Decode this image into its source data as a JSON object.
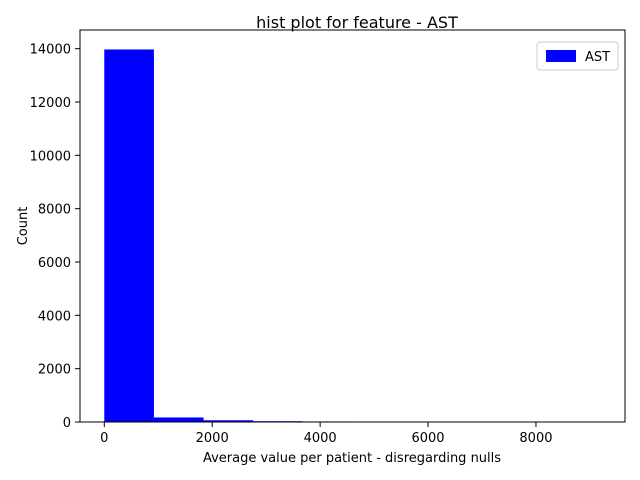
{
  "chart_data": {
    "type": "bar",
    "title": "hist plot for feature -  AST",
    "xlabel": "Average value per patient - disregarding nulls",
    "ylabel": "Count",
    "xlim": [
      -450,
      9650
    ],
    "ylim": [
      0,
      14700
    ],
    "xticks": [
      0,
      2000,
      4000,
      6000,
      8000
    ],
    "yticks": [
      0,
      2000,
      4000,
      6000,
      8000,
      10000,
      12000,
      14000
    ],
    "bin_edges": [
      0,
      920,
      1840,
      2760,
      3680,
      4600,
      5520,
      6440,
      7360,
      8280,
      9200
    ],
    "counts": [
      13970,
      170,
      65,
      30,
      20,
      15,
      12,
      8,
      4,
      2
    ],
    "series": [
      {
        "name": "AST",
        "color": "#0000ff"
      }
    ],
    "legend": "top-right",
    "grid": false
  }
}
